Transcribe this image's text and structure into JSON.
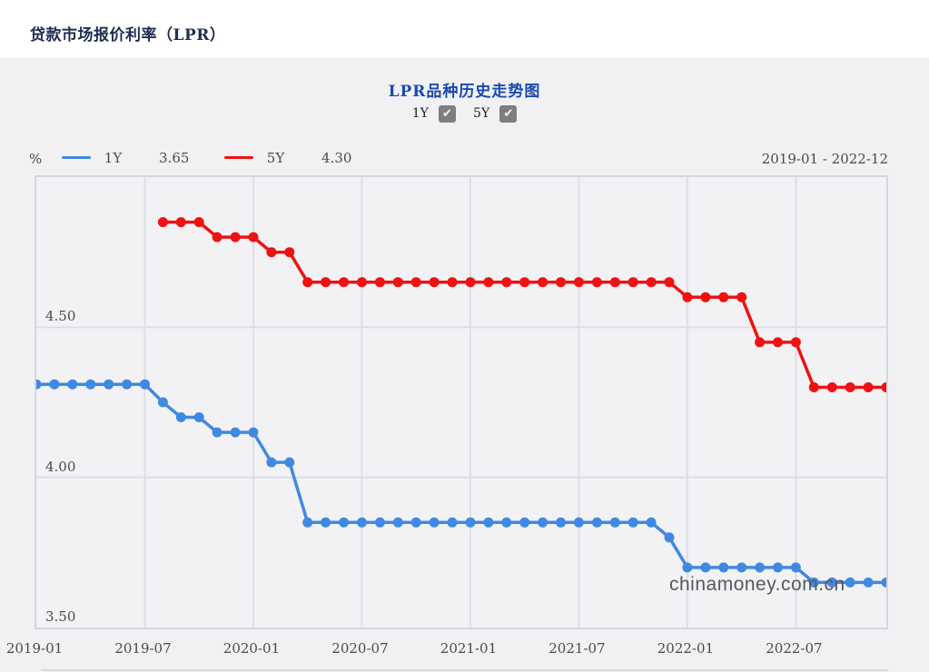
{
  "page": {
    "title": "贷款市场报价利率（LPR）"
  },
  "chart": {
    "title": "LPR品种历史走势图",
    "controls": [
      {
        "label": "1Y",
        "checked": true,
        "check_glyph": "✔"
      },
      {
        "label": "5Y",
        "checked": true,
        "check_glyph": "✔"
      }
    ],
    "unit": "%",
    "legend": [
      {
        "name": "1Y",
        "value": "3.65",
        "color": "#4189e0"
      },
      {
        "name": "5Y",
        "value": "4.30",
        "color": "#ee1212"
      }
    ],
    "date_range": "2019-01 - 2022-12",
    "watermark": "chinamoney.com.cn"
  },
  "chart_data": {
    "type": "line",
    "title": "LPR品种历史走势图",
    "ylabel": "%",
    "ylim": [
      3.5,
      5.0
    ],
    "yticks": [
      "4.50",
      "4.00",
      "3.50"
    ],
    "ytick_values": [
      4.5,
      4.0,
      3.5
    ],
    "grid": true,
    "legend_position": "top-left",
    "x": [
      "2019-01",
      "2019-02",
      "2019-03",
      "2019-04",
      "2019-05",
      "2019-06",
      "2019-07",
      "2019-08",
      "2019-09",
      "2019-10",
      "2019-11",
      "2019-12",
      "2020-01",
      "2020-02",
      "2020-03",
      "2020-04",
      "2020-05",
      "2020-06",
      "2020-07",
      "2020-08",
      "2020-09",
      "2020-10",
      "2020-11",
      "2020-12",
      "2021-01",
      "2021-02",
      "2021-03",
      "2021-04",
      "2021-05",
      "2021-06",
      "2021-07",
      "2021-08",
      "2021-09",
      "2021-10",
      "2021-11",
      "2021-12",
      "2022-01",
      "2022-02",
      "2022-03",
      "2022-04",
      "2022-05",
      "2022-06",
      "2022-07",
      "2022-08",
      "2022-09",
      "2022-10",
      "2022-11",
      "2022-12"
    ],
    "xtick_labels": [
      "2019-01",
      "2019-07",
      "2020-01",
      "2020-07",
      "2021-01",
      "2021-07",
      "2022-01",
      "2022-07"
    ],
    "xtick_indices": [
      0,
      6,
      12,
      18,
      24,
      30,
      36,
      42
    ],
    "series": [
      {
        "name": "1Y",
        "color": "#4189e0",
        "values": [
          4.31,
          4.31,
          4.31,
          4.31,
          4.31,
          4.31,
          4.31,
          4.25,
          4.2,
          4.2,
          4.15,
          4.15,
          4.15,
          4.05,
          4.05,
          3.85,
          3.85,
          3.85,
          3.85,
          3.85,
          3.85,
          3.85,
          3.85,
          3.85,
          3.85,
          3.85,
          3.85,
          3.85,
          3.85,
          3.85,
          3.85,
          3.85,
          3.85,
          3.85,
          3.85,
          3.8,
          3.7,
          3.7,
          3.7,
          3.7,
          3.7,
          3.7,
          3.7,
          3.65,
          3.65,
          3.65,
          3.65,
          3.65
        ]
      },
      {
        "name": "5Y",
        "color": "#ee1212",
        "values": [
          null,
          null,
          null,
          null,
          null,
          null,
          null,
          4.85,
          4.85,
          4.85,
          4.8,
          4.8,
          4.8,
          4.75,
          4.75,
          4.65,
          4.65,
          4.65,
          4.65,
          4.65,
          4.65,
          4.65,
          4.65,
          4.65,
          4.65,
          4.65,
          4.65,
          4.65,
          4.65,
          4.65,
          4.65,
          4.65,
          4.65,
          4.65,
          4.65,
          4.65,
          4.6,
          4.6,
          4.6,
          4.6,
          4.45,
          4.45,
          4.45,
          4.3,
          4.3,
          4.3,
          4.3,
          4.3
        ]
      }
    ]
  }
}
